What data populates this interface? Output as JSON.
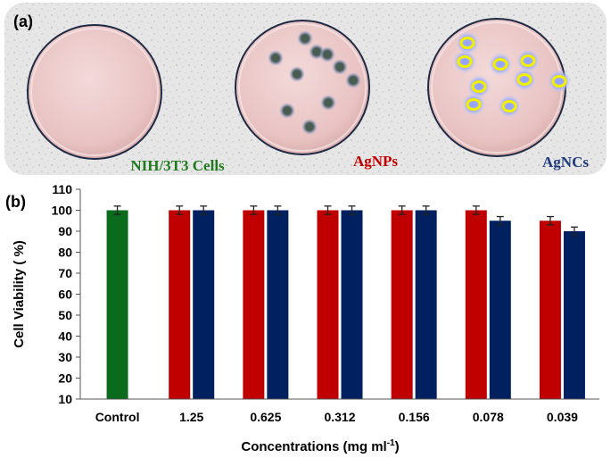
{
  "panel_a": {
    "label": "(a)",
    "dishes": [
      {
        "label": "NIH/3T3 Cells",
        "label_color": "#1f7a1f"
      },
      {
        "label": "AgNPs",
        "label_color": "#c00000"
      },
      {
        "label": "AgNCs",
        "label_color": "#1f3a7a"
      }
    ]
  },
  "panel_b": {
    "label": "(b)"
  },
  "chart_data": {
    "type": "bar",
    "categories": [
      "Control",
      "1.25",
      "0.625",
      "0.312",
      "0.156",
      "0.078",
      "0.039"
    ],
    "series": [
      {
        "values": [
          100,
          null,
          null,
          null,
          null,
          null,
          null
        ],
        "errors": [
          2,
          null,
          null,
          null,
          null,
          null,
          null
        ],
        "color": "#0b6b1d"
      },
      {
        "values": [
          null,
          100,
          100,
          100,
          100,
          100,
          95
        ],
        "errors": [
          null,
          2,
          2,
          2,
          2,
          2,
          2
        ],
        "color": "#c00000"
      },
      {
        "values": [
          null,
          100,
          100,
          100,
          100,
          95,
          90
        ],
        "errors": [
          null,
          2,
          2,
          2,
          2,
          2,
          2
        ],
        "color": "#002060"
      }
    ],
    "xlabel_main": "Concentrations (mg ml",
    "xlabel_sup": "-1",
    "xlabel_end": ")",
    "ylabel": "Cell Viability ( %)",
    "ylim": [
      10,
      110
    ],
    "yticks": [
      "10",
      "20",
      "30",
      "40",
      "50",
      "60",
      "70",
      "80",
      "90",
      "100",
      "110"
    ],
    "grid": false,
    "legend": "none"
  }
}
